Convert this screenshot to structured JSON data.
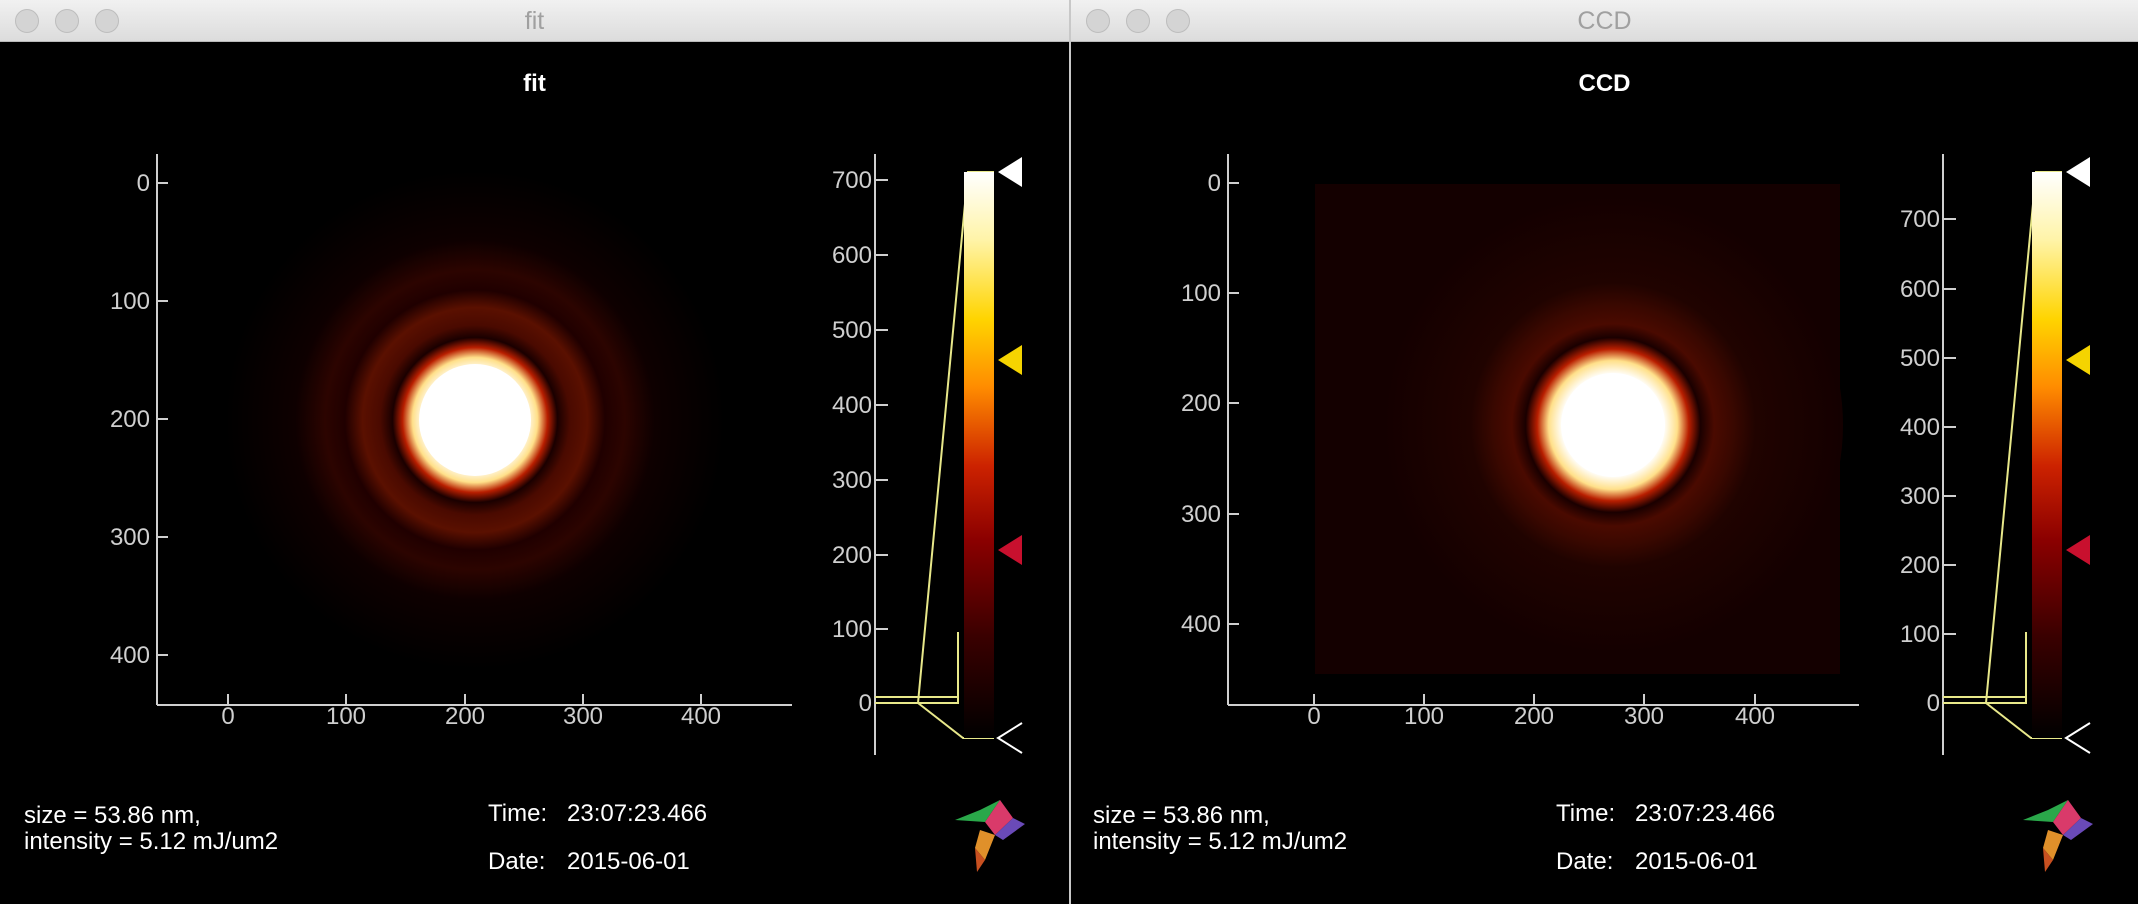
{
  "windows": [
    {
      "id": "fit",
      "window_title": "fit",
      "plot_title": "fit",
      "info_line1": "size = 53.86 nm,",
      "info_line2": "intensity = 5.12 mJ/um2",
      "time_label": "Time:",
      "time_value": "23:07:23.466",
      "date_label": "Date:",
      "date_value": "2015-06-01",
      "image_axes": {
        "x_ticks": [
          "0",
          "100",
          "200",
          "300",
          "400"
        ],
        "y_ticks": [
          "0",
          "100",
          "200",
          "300",
          "400"
        ]
      },
      "colorbar": {
        "ticks": [
          "0",
          "100",
          "200",
          "300",
          "400",
          "500",
          "600",
          "700"
        ]
      }
    },
    {
      "id": "ccd",
      "window_title": "CCD",
      "plot_title": "CCD",
      "info_line1": "size = 53.86 nm,",
      "info_line2": "intensity = 5.12 mJ/um2",
      "time_label": "Time:",
      "time_value": "23:07:23.466",
      "date_label": "Date:",
      "date_value": "2015-06-01",
      "image_axes": {
        "x_ticks": [
          "0",
          "100",
          "200",
          "300",
          "400"
        ],
        "y_ticks": [
          "0",
          "100",
          "200",
          "300",
          "400"
        ]
      },
      "colorbar": {
        "ticks": [
          "0",
          "100",
          "200",
          "300",
          "400",
          "500",
          "600",
          "700"
        ]
      }
    }
  ],
  "colors": {
    "background": "#000000",
    "axis": "#cfcfcf",
    "colormap": [
      "#000000",
      "#3a0000",
      "#8b0000",
      "#cc2200",
      "#ff7f00",
      "#ffd400",
      "#fff2a0",
      "#ffffff"
    ],
    "marker_top": "#ffffff",
    "marker_mid": "#f5d400",
    "marker_low": "#c8102e",
    "transfer_line": "#e8e88a"
  },
  "icons": [
    "close-icon",
    "minimize-icon",
    "zoom-icon",
    "hummingbird-logo-icon"
  ]
}
